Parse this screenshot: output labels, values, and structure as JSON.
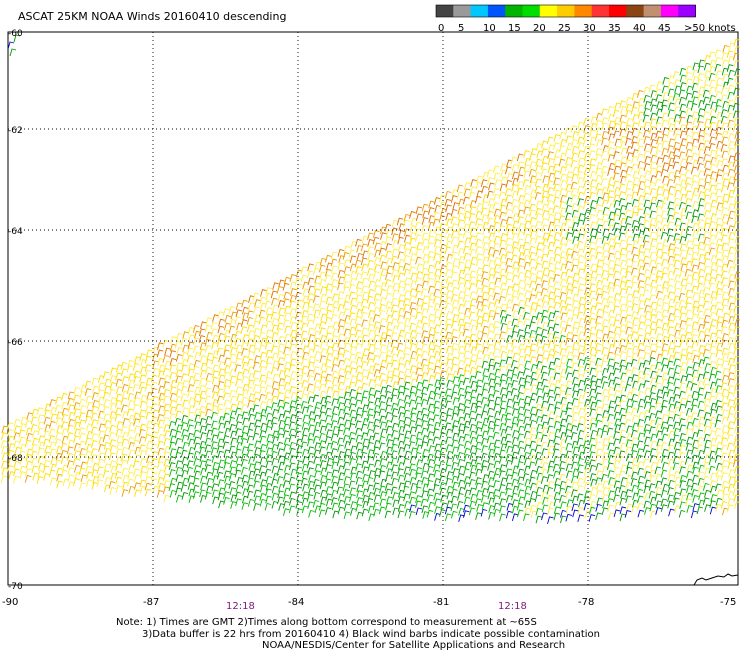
{
  "title": "ASCAT 25KM NOAA Winds 20160410 descending",
  "legend": {
    "colors": [
      "#444444",
      "#9a9a9a",
      "#00c8ff",
      "#0055ff",
      "#00b400",
      "#00dd00",
      "#ffff00",
      "#ffcc00",
      "#ff8800",
      "#ff3333",
      "#ff0000",
      "#8b4513",
      "#c09070",
      "#ff00ff",
      "#9900ff"
    ],
    "labels": [
      "0",
      "5",
      "10",
      "15",
      "20",
      "25",
      "30",
      "35",
      "40",
      "45",
      ">50 knots"
    ]
  },
  "chart_data": {
    "type": "map",
    "lon_ticks": [
      "-90",
      "-87",
      "-84",
      "-81",
      "-78",
      "-75"
    ],
    "lat_ticks": [
      "-60",
      "-62",
      "-64",
      "-66",
      "-68",
      "-70"
    ],
    "time_labels": [
      "12:18",
      "12:18"
    ],
    "xlim": [
      -90,
      -75
    ],
    "ylim": [
      -70,
      -60
    ],
    "grid": "dotted"
  },
  "notes": {
    "line1": "Note: 1) Times are GMT 2)Times along bottom correspond to measurement at ~65S",
    "line2": "3)Data buffer is 22 hrs from 20160410 4) Black wind barbs indicate possible contamination",
    "line3": "NOAA/NESDIS/Center for Satellite Applications and Research"
  }
}
